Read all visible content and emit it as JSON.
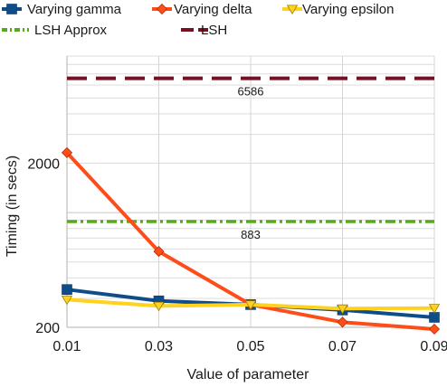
{
  "chart_data": {
    "type": "line",
    "xlabel": "Value of parameter",
    "ylabel": "Timing (in secs)",
    "x": [
      0.01,
      0.03,
      0.05,
      0.07,
      0.09
    ],
    "x_tick_labels": [
      "0.01",
      "0.03",
      "0.05",
      "0.07",
      "0.09"
    ],
    "y_scale": "log",
    "ylim": [
      200,
      9000
    ],
    "y_tick_labels": [
      {
        "value": 200,
        "label": "200"
      },
      {
        "value": 2000,
        "label": "2000"
      }
    ],
    "grid": true,
    "legend_position": "top",
    "series": [
      {
        "name": "Varying gamma",
        "color": "#0f4d8a",
        "marker": "square",
        "values": [
          340,
          290,
          275,
          255,
          230
        ]
      },
      {
        "name": "Varying delta",
        "color": "#ff4d1a",
        "marker": "diamond",
        "values": [
          2320,
          580,
          275,
          215,
          195
        ]
      },
      {
        "name": "Varying epsilon",
        "color": "#ffd21f",
        "marker": "triangle-down",
        "values": [
          295,
          270,
          275,
          260,
          262
        ]
      }
    ],
    "reference_lines": [
      {
        "name": "LSH Approx",
        "color": "#5aa81e",
        "style": "dash-dot",
        "value": 883,
        "label": "883"
      },
      {
        "name": "LSH",
        "color": "#7a0f24",
        "style": "dashed",
        "value": 6586,
        "label": "6586"
      }
    ]
  }
}
